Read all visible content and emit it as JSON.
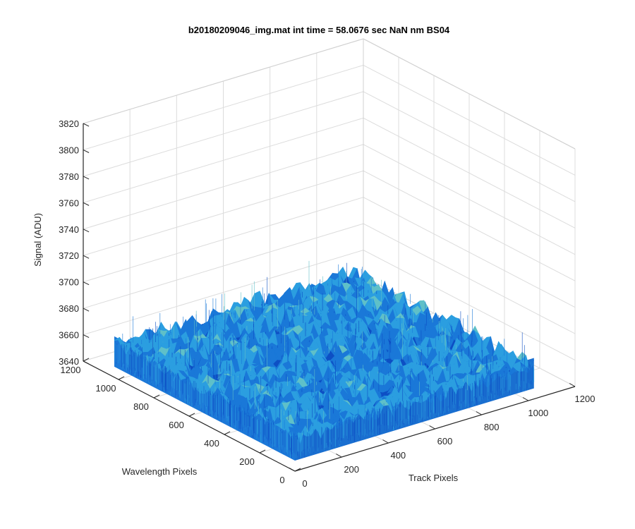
{
  "chart_data": {
    "type": "surface",
    "title": "b20180209046_img.mat int time = 58.0676 sec  NaN nm BS04",
    "xlabel": "Track Pixels",
    "ylabel": "Wavelength Pixels",
    "zlabel": "Signal (ADU)",
    "xlim": [
      0,
      1200
    ],
    "ylim": [
      0,
      1200
    ],
    "zlim": [
      3640,
      3820
    ],
    "x_ticks": [
      "0",
      "200",
      "400",
      "600",
      "800",
      "1000",
      "1200"
    ],
    "y_ticks": [
      "0",
      "200",
      "400",
      "600",
      "800",
      "1000",
      "1200"
    ],
    "z_ticks": [
      "3640",
      "3660",
      "3680",
      "3700",
      "3720",
      "3740",
      "3760",
      "3780",
      "3800",
      "3820"
    ],
    "surface": {
      "x_extent": [
        0,
        1024
      ],
      "y_extent": [
        0,
        1024
      ],
      "mean_signal": 3665,
      "noise_low": 3648,
      "noise_high": 3690,
      "colormap": [
        "#0d4fc4",
        "#1a78d8",
        "#2b9ee0",
        "#5fc0c8",
        "#b8d86a"
      ]
    },
    "grid": true,
    "colors": {
      "axis": "#262626",
      "grid": "#dcdcdc"
    }
  }
}
